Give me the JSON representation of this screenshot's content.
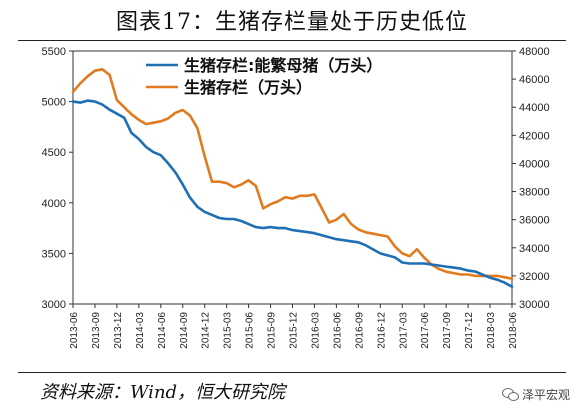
{
  "title": "图表17：生猪存栏量处于历史低位",
  "source": "资料来源：Wind，恒大研究院",
  "watermark": {
    "text": "泽平宏观",
    "icon": "wechat-icon"
  },
  "colors": {
    "sow": "#1f6fb5",
    "hog": "#e07b20",
    "axis": "#333333"
  },
  "chart_data": {
    "type": "line",
    "x": [
      "2013-06",
      "2013-07",
      "2013-08",
      "2013-09",
      "2013-10",
      "2013-11",
      "2013-12",
      "2014-01",
      "2014-02",
      "2014-03",
      "2014-04",
      "2014-05",
      "2014-06",
      "2014-07",
      "2014-08",
      "2014-09",
      "2014-10",
      "2014-11",
      "2014-12",
      "2015-01",
      "2015-02",
      "2015-03",
      "2015-04",
      "2015-05",
      "2015-06",
      "2015-07",
      "2015-08",
      "2015-09",
      "2015-10",
      "2015-11",
      "2015-12",
      "2016-01",
      "2016-02",
      "2016-03",
      "2016-04",
      "2016-05",
      "2016-06",
      "2016-07",
      "2016-08",
      "2016-09",
      "2016-10",
      "2016-11",
      "2016-12",
      "2017-01",
      "2017-02",
      "2017-03",
      "2017-04",
      "2017-05",
      "2017-06",
      "2017-07",
      "2017-08",
      "2017-09",
      "2017-10",
      "2017-11",
      "2017-12",
      "2018-01",
      "2018-02",
      "2018-03",
      "2018-04",
      "2018-05",
      "2018-06"
    ],
    "x_tick_labels": [
      "2013-06",
      "2013-09",
      "2013-12",
      "2014-03",
      "2014-06",
      "2014-09",
      "2014-12",
      "2015-03",
      "2015-06",
      "2015-09",
      "2015-12",
      "2016-03",
      "2016-06",
      "2016-09",
      "2016-12",
      "2017-03",
      "2017-06",
      "2017-09",
      "2017-12",
      "2018-03",
      "2018-06"
    ],
    "left_axis": {
      "ylim": [
        3000,
        5500
      ],
      "ticks": [
        3000,
        3500,
        4000,
        4500,
        5000,
        5500
      ]
    },
    "right_axis": {
      "ylim": [
        30000,
        48000
      ],
      "ticks": [
        30000,
        32000,
        34000,
        36000,
        38000,
        40000,
        42000,
        44000,
        46000,
        48000
      ]
    },
    "legend_position": "top",
    "series": [
      {
        "name": "生猪存栏:能繁母猪（万头）",
        "axis": "left",
        "values": [
          5000,
          4990,
          5010,
          5000,
          4970,
          4920,
          4880,
          4840,
          4690,
          4630,
          4550,
          4500,
          4470,
          4390,
          4300,
          4180,
          4050,
          3960,
          3910,
          3880,
          3850,
          3840,
          3840,
          3820,
          3790,
          3760,
          3750,
          3760,
          3750,
          3750,
          3730,
          3720,
          3710,
          3700,
          3680,
          3660,
          3640,
          3630,
          3620,
          3610,
          3580,
          3540,
          3500,
          3480,
          3460,
          3410,
          3400,
          3400,
          3400,
          3390,
          3380,
          3370,
          3360,
          3350,
          3330,
          3320,
          3290,
          3260,
          3240,
          3210,
          3170
        ]
      },
      {
        "name": "生猪存栏（万头）",
        "axis": "right",
        "values": [
          45100,
          45700,
          46200,
          46600,
          46700,
          46300,
          44500,
          44000,
          43500,
          43100,
          42800,
          42900,
          43000,
          43200,
          43600,
          43800,
          43400,
          42500,
          40500,
          38700,
          38700,
          38600,
          38300,
          38500,
          38800,
          38400,
          36800,
          37100,
          37300,
          37600,
          37500,
          37700,
          37700,
          37800,
          36800,
          35800,
          36000,
          36400,
          35700,
          35300,
          35100,
          35000,
          34900,
          34800,
          34100,
          33600,
          33400,
          33900,
          33300,
          32800,
          32500,
          32300,
          32200,
          32100,
          32100,
          32000,
          32000,
          32000,
          32000,
          31900,
          31800
        ]
      }
    ]
  }
}
